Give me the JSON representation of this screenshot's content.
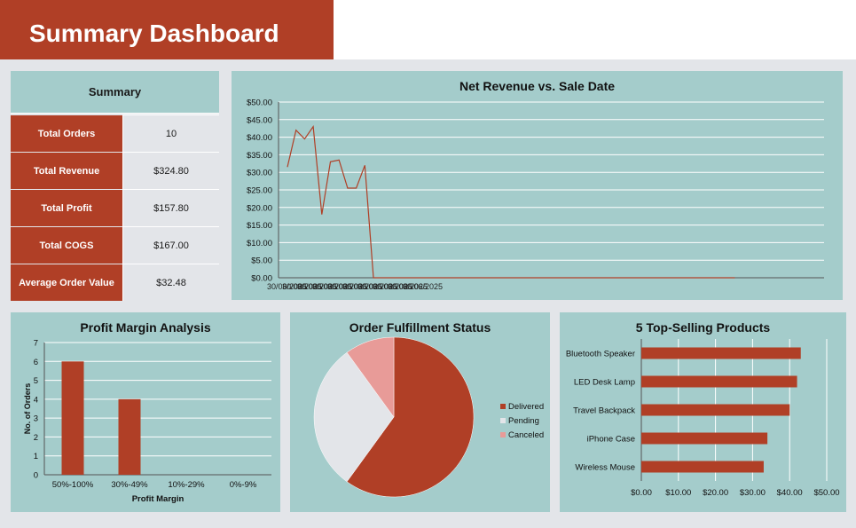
{
  "header": {
    "title": "Summary Dashboard"
  },
  "summary": {
    "heading": "Summary",
    "rows": [
      {
        "label": "Total Orders",
        "value": "10"
      },
      {
        "label": "Total Revenue",
        "value": "$324.80"
      },
      {
        "label": "Total Profit",
        "value": "$157.80"
      },
      {
        "label": "Total COGS",
        "value": "$167.00"
      },
      {
        "label": "Average Order Value",
        "value": "$32.48"
      }
    ]
  },
  "colors": {
    "accent": "#b03f26",
    "panel": "#a4cccb",
    "pending": "#e3e5e9",
    "canceled": "#e89b98"
  },
  "chart_data": [
    {
      "type": "line",
      "title": "Net Revenue vs. Sale Date",
      "y_ticks": [
        "$0.00",
        "$5.00",
        "$10.00",
        "$15.00",
        "$20.00",
        "$25.00",
        "$30.00",
        "$35.00",
        "$40.00",
        "$45.00",
        "$50.00"
      ],
      "ylim": [
        0,
        50
      ],
      "x_axis_label_text": "30/06/2025",
      "series": [
        {
          "values": [
            31.5,
            42,
            39.5,
            43,
            18,
            33,
            33.5,
            25.5,
            25.5,
            32,
            0,
            0,
            0,
            0,
            0,
            0,
            0,
            0,
            0,
            0,
            0,
            0,
            0,
            0,
            0,
            0,
            0,
            0,
            0,
            0,
            0,
            0,
            0,
            0,
            0,
            0,
            0,
            0,
            0,
            0,
            0,
            0,
            0,
            0,
            0,
            0,
            0,
            0,
            0,
            0,
            0,
            0,
            0
          ]
        }
      ],
      "grid": true
    },
    {
      "type": "bar",
      "title": "Profit Margin Analysis",
      "categories": [
        "50%-100%",
        "30%-49%",
        "10%-29%",
        "0%-9%"
      ],
      "values": [
        6,
        4,
        0,
        0
      ],
      "xlabel": "Profit Margin",
      "ylabel": "No. of Orders",
      "ylim": [
        0,
        7
      ],
      "y_ticks": [
        "0",
        "1",
        "2",
        "3",
        "4",
        "5",
        "6",
        "7"
      ],
      "grid": true
    },
    {
      "type": "pie",
      "title": "Order Fulfillment Status",
      "labels": [
        "Delivered",
        "Pending",
        "Canceled"
      ],
      "values": [
        60,
        30,
        10
      ],
      "legend": "right"
    },
    {
      "type": "bar",
      "orientation": "horizontal",
      "title": "5 Top-Selling Products",
      "categories": [
        "Bluetooth Speaker",
        "LED Desk Lamp",
        "Travel Backpack",
        "iPhone Case",
        "Wireless Mouse"
      ],
      "values": [
        43,
        42,
        40,
        34,
        33
      ],
      "x_ticks": [
        "$0.00",
        "$10.00",
        "$20.00",
        "$30.00",
        "$40.00",
        "$50.00"
      ],
      "xlim": [
        0,
        50
      ],
      "grid": true
    }
  ]
}
